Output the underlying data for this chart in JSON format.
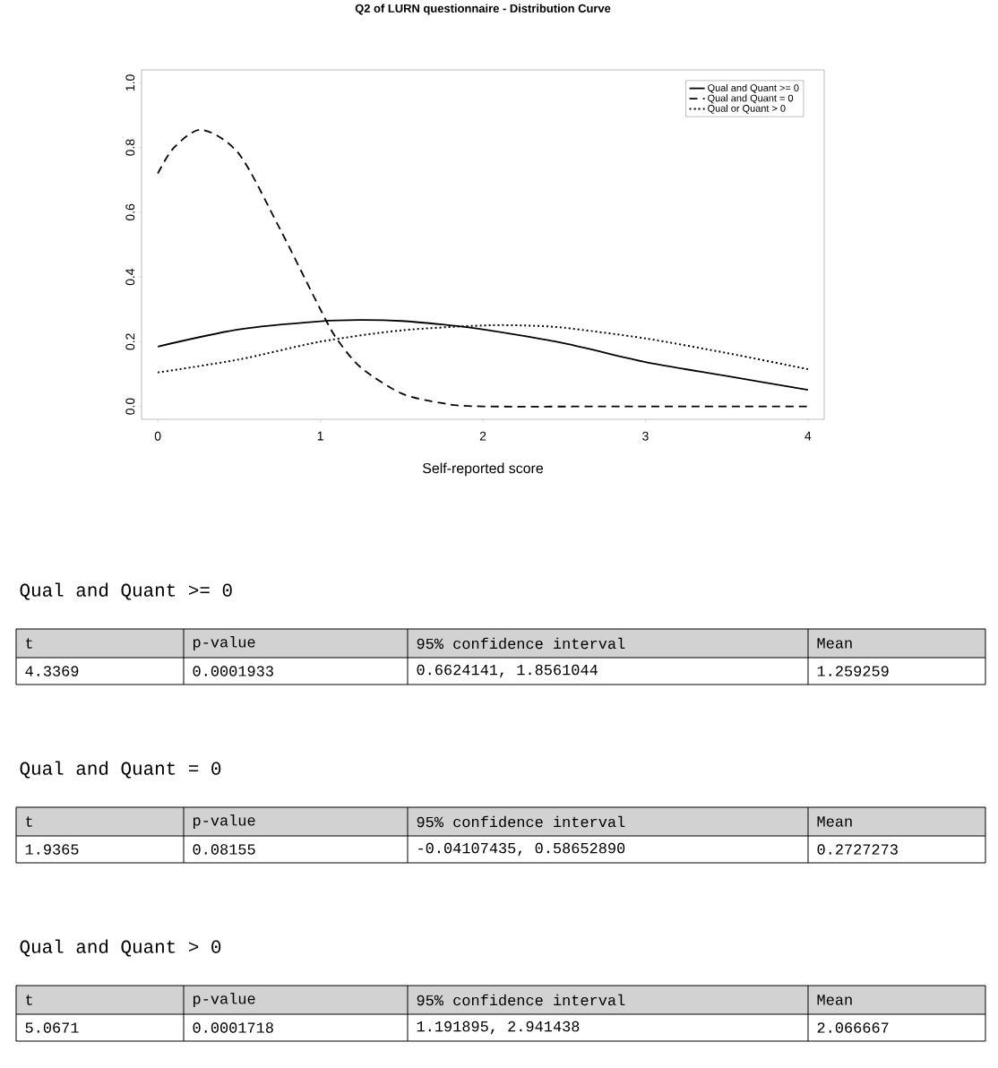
{
  "chart_data": [
    {
      "type": "line",
      "title": "Q2 of LURN questionnaire - Distribution Curve",
      "xlabel": "Self-reported score",
      "xlim": [
        -0.1,
        4.1
      ],
      "ylim": [
        -0.04,
        1.04
      ],
      "xticks": [
        0,
        1,
        2,
        3,
        4
      ],
      "yticks": [
        {
          "value": 0,
          "label": "0.0"
        },
        0.2,
        0.4,
        0.6,
        0.8,
        {
          "value": 1,
          "label": "1.0"
        }
      ],
      "legend": "top right",
      "series": [
        {
          "name": "Qual and Quant >= 0",
          "color": "#000000",
          "line_style": "solid",
          "x": [
            0,
            0.5,
            1,
            1.25,
            1.5,
            1.75,
            2,
            2.5,
            3,
            3.5,
            4
          ],
          "values": [
            0.185,
            0.238,
            0.263,
            0.267,
            0.264,
            0.253,
            0.238,
            0.195,
            0.137,
            0.094,
            0.051
          ]
        },
        {
          "name": "Qual and Quant = 0",
          "color": "#000000",
          "line_style": "dashed",
          "x": [
            0,
            0.1,
            0.27,
            0.5,
            0.75,
            1,
            1.1,
            1.25,
            1.5,
            1.75,
            2,
            3,
            4
          ],
          "values": [
            0.72,
            0.8,
            0.855,
            0.78,
            0.55,
            0.3,
            0.21,
            0.12,
            0.04,
            0.01,
            0.0,
            0.0,
            0.0
          ]
        },
        {
          "name": "Qual or Quant > 0",
          "color": "#000000",
          "line_style": "dotted",
          "x": [
            0,
            0.5,
            1,
            1.5,
            2,
            2.25,
            2.5,
            3,
            3.5,
            4
          ],
          "values": [
            0.105,
            0.145,
            0.2,
            0.235,
            0.25,
            0.25,
            0.243,
            0.21,
            0.165,
            0.115
          ]
        }
      ]
    },
    {
      "type": "other",
      "annotations": [
        "Qual and Quant >= 0",
        "t",
        "p-value",
        "95% confidence interval",
        "Mean",
        "4.3369",
        "0.0001933",
        "0.6624141, 1.8561044",
        "1.259259",
        "Qual and Quant = 0",
        "t",
        "p-value",
        "95% confidence interval",
        "Mean",
        "1.9365",
        "0.08155",
        "-0.04107435, 0.58652890",
        "0.2727273",
        "Qual and Quant > 0",
        "t",
        "p-value",
        "95% confidence interval",
        "Mean",
        "5.0671",
        "0.0001718",
        "1.191895, 2.941438",
        "2.066667"
      ]
    }
  ]
}
